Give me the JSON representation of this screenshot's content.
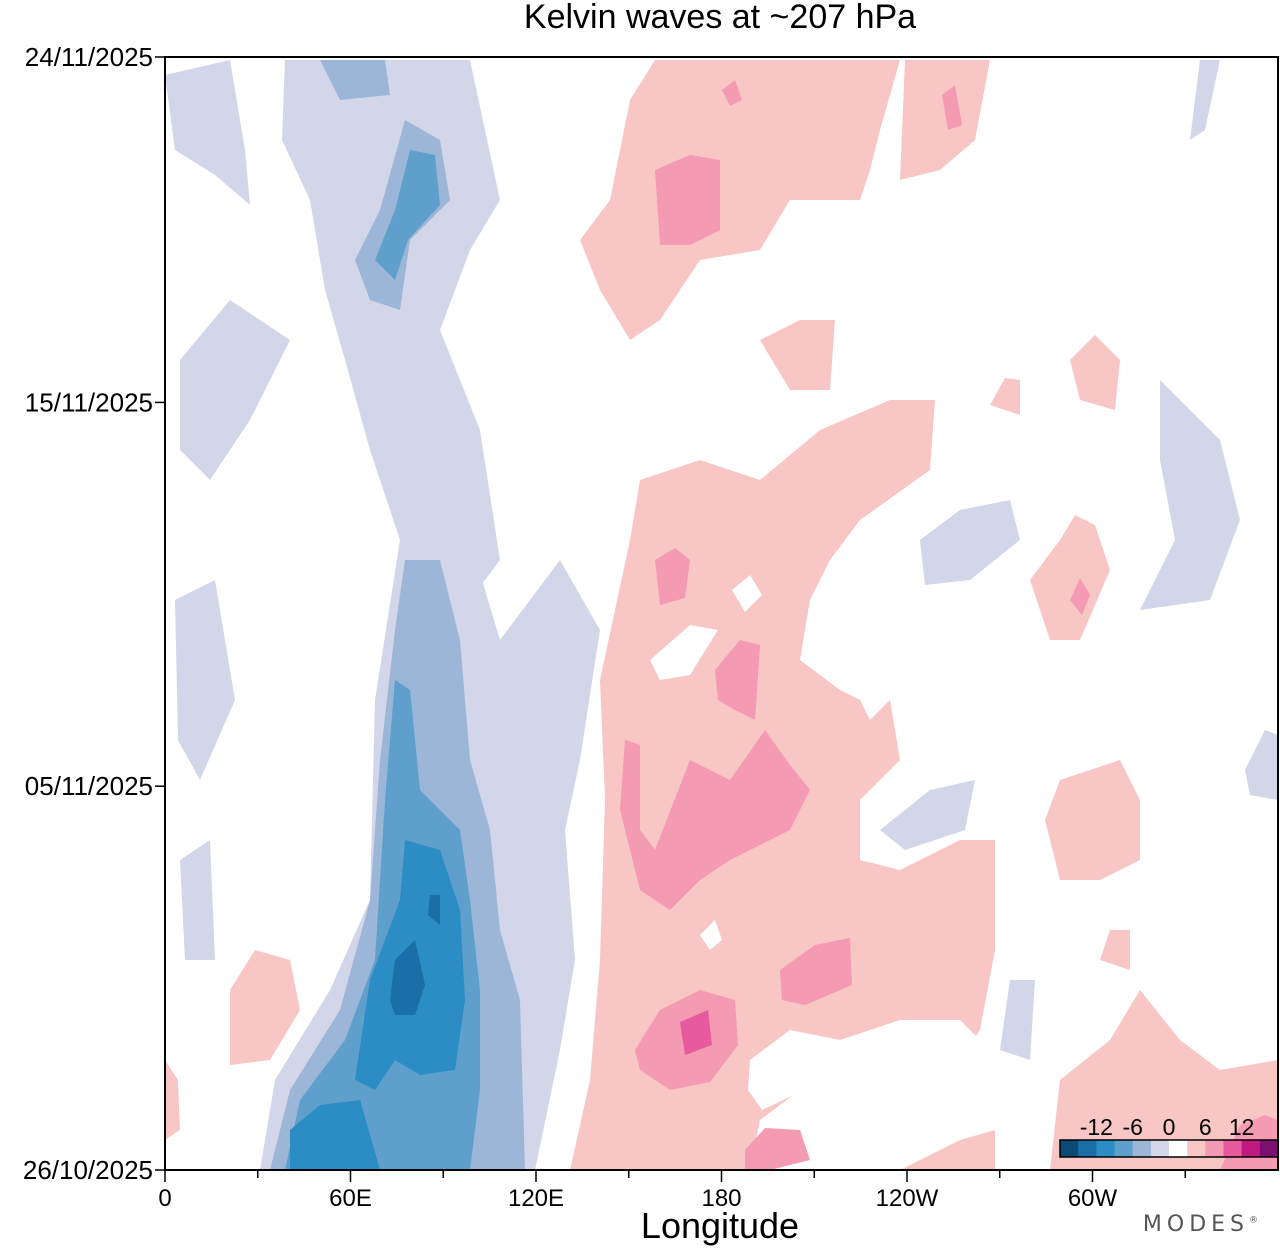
{
  "chart_data": {
    "type": "heatmap",
    "title": "Kelvin waves at ~207 hPa",
    "xlabel": "Longitude",
    "ylabel": "",
    "x_ticks": [
      "0",
      "60E",
      "120E",
      "180",
      "120W",
      "60W"
    ],
    "x_tick_values": [
      0,
      60,
      120,
      180,
      240,
      300
    ],
    "xlim": [
      0,
      360
    ],
    "y_ticks": [
      "24/11/2025",
      "15/11/2025",
      "05/11/2025",
      "26/10/2025"
    ],
    "ylim": [
      "26/10/2025",
      "24/11/2025"
    ],
    "colorbar": {
      "tick_labels": [
        "-12",
        "-6",
        "0",
        "6",
        "12"
      ],
      "levels": [
        -15,
        -12,
        -9,
        -6,
        -3,
        0,
        3,
        6,
        9,
        12,
        15
      ],
      "colors": [
        "#0b4a75",
        "#1a6fa6",
        "#2c8cc4",
        "#5e9fcc",
        "#9cb6d8",
        "#d3d6e8",
        "#ffffff",
        "#f8c6c4",
        "#f49ab2",
        "#e85a9e",
        "#c0197f",
        "#7a1070"
      ]
    },
    "features": [
      {
        "sign": "negative",
        "lon_range": [
          40,
          100
        ],
        "date_range": [
          "26/10/2025",
          "08/11/2025"
        ],
        "peak": -13
      },
      {
        "sign": "negative",
        "lon_range": [
          65,
          95
        ],
        "date_range": [
          "17/11/2025",
          "23/11/2025"
        ],
        "peak": -8
      },
      {
        "sign": "positive",
        "lon_range": [
          150,
          215
        ],
        "date_range": [
          "26/10/2025",
          "13/11/2025"
        ],
        "peak": 9
      },
      {
        "sign": "positive",
        "lon_range": [
          150,
          200
        ],
        "date_range": [
          "17/11/2025",
          "24/11/2025"
        ],
        "peak": 6
      },
      {
        "sign": "negative",
        "lon_range": [
          325,
          355
        ],
        "date_range": [
          "09/11/2025",
          "16/11/2025"
        ],
        "peak": -5
      }
    ]
  },
  "brand": {
    "name": "MODES",
    "mark": "®"
  },
  "colors": {
    "axis": "#000000",
    "background": "#ffffff"
  }
}
